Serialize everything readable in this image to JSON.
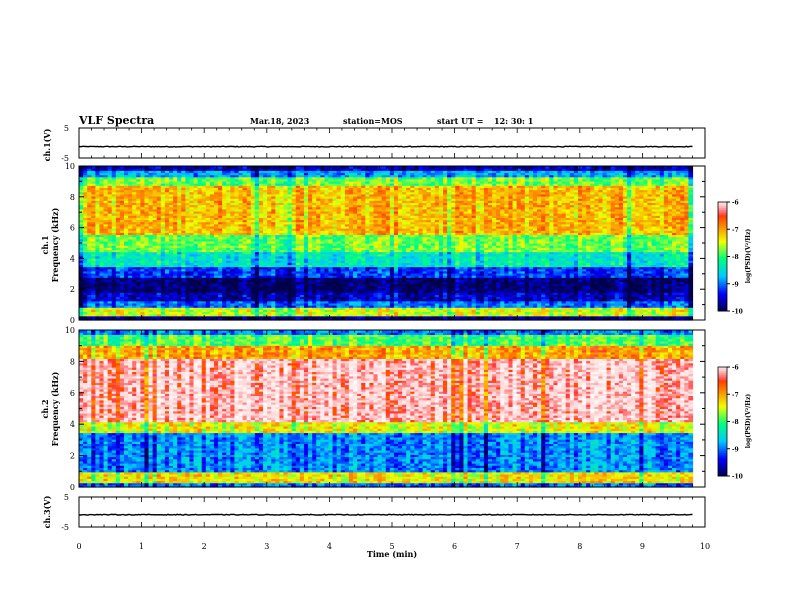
{
  "header": {
    "title": "VLF Spectra",
    "date": "Mar.18, 2023",
    "station": "station=MOS",
    "start_ut_label": "start  UT =",
    "start_ut_value": "12: 30: 1"
  },
  "chart_data": [
    {
      "type": "line",
      "name": "ch1-waveform",
      "ylabel": "ch.1(V)",
      "ylim": [
        -5,
        5
      ],
      "yticks": [
        "5",
        "-5"
      ],
      "x": [
        0,
        10
      ],
      "y": [
        -1.2,
        -1.2
      ]
    },
    {
      "type": "heatmap",
      "name": "ch1-spectrogram",
      "ylabel": "ch.1\nFrequency (kHz)",
      "ylabel_line1": "ch.1",
      "ylabel_line2": "Frequency (kHz)",
      "xlim": [
        0,
        10
      ],
      "ylim": [
        0,
        10
      ],
      "yticks": [
        "0",
        "2",
        "4",
        "6",
        "8",
        "10"
      ],
      "data_end_min": 9.8,
      "bands_kHz_to_logPSD": [
        [
          0.0,
          0.3,
          -9.8
        ],
        [
          0.3,
          0.8,
          -7.5
        ],
        [
          0.8,
          1.2,
          -9.0
        ],
        [
          1.2,
          1.8,
          -9.6
        ],
        [
          1.8,
          2.8,
          -9.9
        ],
        [
          2.8,
          3.5,
          -9.2
        ],
        [
          3.5,
          4.5,
          -8.4
        ],
        [
          4.5,
          5.5,
          -7.8
        ],
        [
          5.5,
          8.8,
          -7.1
        ],
        [
          8.8,
          9.3,
          -7.8
        ],
        [
          9.3,
          9.7,
          -8.8
        ],
        [
          9.7,
          10.0,
          -9.6
        ]
      ],
      "colorbar": {
        "label": "log(PSD)(V²/Hz)",
        "ticks": [
          "-6",
          "-7",
          "-8",
          "-9",
          "-10"
        ],
        "range": [
          -10,
          -6
        ]
      }
    },
    {
      "type": "heatmap",
      "name": "ch2-spectrogram",
      "ylabel": "ch.2\nFrequency (kHz)",
      "ylabel_line1": "ch.2",
      "ylabel_line2": "Frequency (kHz)",
      "xlim": [
        0,
        10
      ],
      "ylim": [
        0,
        10
      ],
      "yticks": [
        "0",
        "2",
        "4",
        "6",
        "8",
        "10"
      ],
      "data_end_min": 9.8,
      "bands_kHz_to_logPSD": [
        [
          0.0,
          0.3,
          -9.0
        ],
        [
          0.3,
          1.0,
          -7.3
        ],
        [
          1.0,
          3.5,
          -8.9
        ],
        [
          3.5,
          4.2,
          -7.4
        ],
        [
          4.2,
          8.2,
          -6.1
        ],
        [
          8.2,
          9.0,
          -7.0
        ],
        [
          9.0,
          9.7,
          -7.9
        ],
        [
          9.7,
          10.0,
          -8.9
        ]
      ],
      "colorbar": {
        "label": "log(PSD)(V²/Hz)",
        "ticks": [
          "-6",
          "-7",
          "-8",
          "-9",
          "-10"
        ],
        "range": [
          -10,
          -6
        ]
      }
    },
    {
      "type": "line",
      "name": "ch3-waveform",
      "ylabel": "ch.3(V)",
      "ylim": [
        -5,
        5
      ],
      "yticks": [
        "5",
        "-5"
      ],
      "x": [
        0,
        10
      ],
      "y": [
        -0.9,
        -0.9
      ]
    }
  ],
  "x_axis": {
    "label": "Time  (min)",
    "ticks": [
      "0",
      "1",
      "2",
      "3",
      "4",
      "5",
      "6",
      "7",
      "8",
      "9",
      "10"
    ],
    "range": [
      0,
      10
    ]
  },
  "colors": {
    "colormap": [
      "#00004a",
      "#0000ff",
      "#00c8ff",
      "#00ff80",
      "#f0ff00",
      "#ff7800",
      "#ff0000",
      "#ffd8d8",
      "#ffffff"
    ]
  }
}
